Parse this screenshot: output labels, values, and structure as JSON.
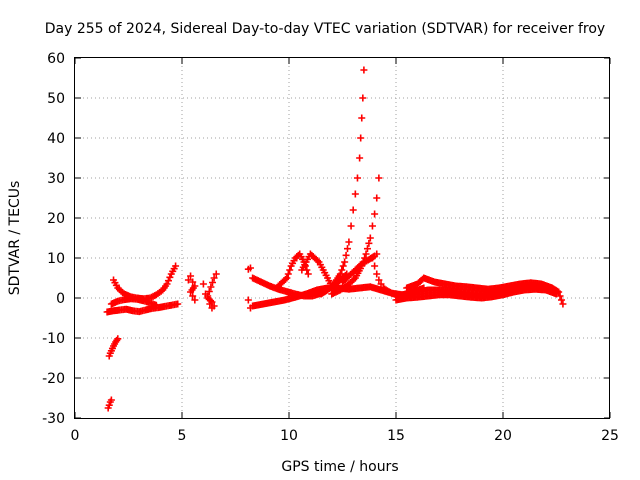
{
  "chart_data": {
    "type": "scatter",
    "title": "Day 255 of 2024, Sidereal Day-to-day VTEC variation (SDTVAR) for receiver froy",
    "xlabel": "GPS time / hours",
    "ylabel": "SDTVAR / TECUs",
    "xlim": [
      0,
      25
    ],
    "ylim": [
      -30,
      60
    ],
    "xticks": [
      "0",
      "5",
      "10",
      "15",
      "20",
      "25"
    ],
    "yticks": [
      "-30",
      "-20",
      "-10",
      "0",
      "10",
      "20",
      "30",
      "40",
      "50",
      "60"
    ],
    "grid": true,
    "marker": "plus",
    "color": "#ff0000",
    "series": [
      {
        "name": "segment-early-negative-1",
        "x": [
          1.55,
          1.6,
          1.65,
          1.7
        ],
        "y": [
          -27.5,
          -26.8,
          -26,
          -25.5
        ]
      },
      {
        "name": "segment-early-negative-2",
        "x": [
          1.6,
          1.65,
          1.7,
          1.75,
          1.8,
          1.85,
          1.9,
          1.95,
          2.0
        ],
        "y": [
          -14.5,
          -13.8,
          -13.2,
          -12.6,
          -12,
          -11.5,
          -11,
          -10.6,
          -10.2
        ]
      },
      {
        "name": "segment-early-band",
        "x": [
          1.5,
          1.8,
          2.1,
          2.4,
          2.7,
          3.0,
          3.3,
          3.6,
          3.9,
          4.2,
          4.5,
          4.8
        ],
        "y": [
          -3.5,
          -3.2,
          -3,
          -2.8,
          -3.2,
          -3.4,
          -3,
          -2.6,
          -2.4,
          -2.1,
          -1.8,
          -1.5
        ]
      },
      {
        "name": "segment-early-rise",
        "x": [
          1.8,
          2.0,
          2.3,
          2.6,
          2.9,
          3.2,
          3.5,
          3.8,
          4.1,
          4.3,
          4.5,
          4.7
        ],
        "y": [
          4.5,
          2.5,
          1,
          0.3,
          0,
          -0.2,
          0,
          0.8,
          2,
          3.5,
          6,
          8
        ]
      },
      {
        "name": "segment-early-mid",
        "x": [
          1.7,
          2.0,
          2.3,
          2.6,
          2.9,
          3.2,
          3.5,
          3.8
        ],
        "y": [
          -1.5,
          -0.8,
          -0.4,
          -0.2,
          -0.3,
          -0.7,
          -1.2,
          -1.8
        ]
      },
      {
        "name": "segment-cluster-a",
        "x": [
          5.3,
          5.4,
          5.5,
          5.6,
          5.4,
          5.5,
          5.6
        ],
        "y": [
          4.5,
          5.5,
          4,
          3,
          1.5,
          0.5,
          -0.5
        ]
      },
      {
        "name": "segment-cluster-b",
        "x": [
          6.0,
          6.1,
          6.2,
          6.4,
          6.5,
          6.4,
          6.3,
          6.2,
          6.5,
          6.6
        ],
        "y": [
          3.5,
          1,
          0,
          -1,
          -2,
          -2.5,
          -1.5,
          0.5,
          5,
          6
        ]
      },
      {
        "name": "segment-cluster-c",
        "x": [
          8.1,
          8.2,
          8.1,
          8.2
        ],
        "y": [
          7.2,
          7.5,
          -0.5,
          -2.5
        ]
      },
      {
        "name": "segment-mid-base",
        "x": [
          8.3,
          8.8,
          9.3,
          9.8,
          10.3,
          10.8,
          11.3,
          11.8,
          12.3,
          12.8,
          13.3,
          13.8,
          14.3,
          14.8,
          15.3,
          15.8,
          16.3
        ],
        "y": [
          -2,
          -1.5,
          -1,
          -0.5,
          0.2,
          1,
          2,
          2.5,
          2.5,
          2.2,
          2.5,
          2.8,
          2,
          1.2,
          0.8,
          1.5,
          2.5
        ]
      },
      {
        "name": "segment-mid-arc-1",
        "x": [
          8.3,
          8.7,
          9.1,
          9.5,
          9.9,
          10.3,
          10.7,
          11.1,
          11.5,
          11.9,
          12.3,
          12.7
        ],
        "y": [
          5,
          4,
          3,
          2.2,
          1.6,
          1,
          0.5,
          0.5,
          1.2,
          2.5,
          4,
          6
        ]
      },
      {
        "name": "segment-mid-spike-1",
        "x": [
          9.5,
          9.7,
          9.9,
          10.1,
          10.3,
          10.5,
          10.7,
          10.9
        ],
        "y": [
          3,
          4,
          5,
          8,
          10,
          11,
          9,
          6
        ]
      },
      {
        "name": "segment-mid-hump",
        "x": [
          10.6,
          10.8,
          11.0,
          11.2,
          11.4,
          11.6,
          11.8,
          12.0,
          12.2
        ],
        "y": [
          7,
          9,
          11,
          10,
          9,
          7,
          5,
          3,
          2
        ]
      },
      {
        "name": "segment-spike-main",
        "x": [
          11.5,
          11.8,
          12.1,
          12.4,
          12.6,
          12.8,
          12.9,
          13.0,
          13.1,
          13.2,
          13.3,
          13.35,
          13.4,
          13.45,
          13.5
        ],
        "y": [
          1,
          2,
          3.5,
          6,
          9,
          14,
          18,
          22,
          26,
          30,
          35,
          40,
          45,
          50,
          57
        ]
      },
      {
        "name": "segment-spike-secondary",
        "x": [
          12.0,
          12.4,
          12.8,
          13.1,
          13.4,
          13.6,
          13.8,
          13.9,
          14.0,
          14.1,
          14.2
        ],
        "y": [
          1,
          2,
          3.5,
          5,
          8,
          11,
          15,
          18,
          21,
          25,
          30
        ]
      },
      {
        "name": "segment-spike-shoulder",
        "x": [
          12.5,
          12.8,
          13.1,
          13.4,
          13.7,
          14.0,
          14.1
        ],
        "y": [
          4,
          5.5,
          7,
          8.5,
          9.5,
          10.5,
          11
        ]
      },
      {
        "name": "segment-post-spike",
        "x": [
          13.9,
          14.0,
          14.1,
          14.2,
          14.3,
          14.4,
          14.6,
          14.8,
          15.0,
          15.2
        ],
        "y": [
          10,
          8,
          6,
          4.5,
          3.5,
          2.5,
          1.8,
          1.2,
          0.8,
          0.5
        ]
      },
      {
        "name": "segment-late-band-1",
        "x": [
          15.0,
          15.5,
          16.0,
          16.5,
          17.0,
          17.5,
          18.0,
          18.5,
          19.0,
          19.5,
          20.0,
          20.5,
          21.0,
          21.5,
          22.0,
          22.3,
          22.6,
          22.8
        ],
        "y": [
          0.5,
          1,
          1.5,
          2,
          2,
          1.8,
          1.5,
          1.2,
          1,
          1.5,
          2,
          2.5,
          3,
          3,
          3,
          2.5,
          1.5,
          -1.5
        ]
      },
      {
        "name": "segment-late-band-2",
        "x": [
          15.0,
          15.5,
          16.0,
          16.5,
          17.0,
          17.5,
          18.0,
          18.5,
          19.0,
          19.5,
          20.0,
          20.5,
          21.0,
          21.5,
          22.0,
          22.5
        ],
        "y": [
          -0.5,
          0,
          0.2,
          0.5,
          0.8,
          0.8,
          0.5,
          0.2,
          0,
          0.3,
          0.8,
          1.5,
          2,
          2.2,
          2,
          1
        ]
      },
      {
        "name": "segment-late-band-3",
        "x": [
          15.5,
          16.0,
          16.3,
          16.8,
          17.3,
          17.8,
          18.3,
          18.8,
          19.3,
          19.8,
          20.3,
          20.8,
          21.3,
          21.8,
          22.3
        ],
        "y": [
          2.5,
          3.5,
          5,
          4,
          3.5,
          3,
          2.8,
          2.5,
          2.2,
          2.5,
          3,
          3.5,
          3.8,
          3.5,
          2.5
        ]
      }
    ]
  }
}
